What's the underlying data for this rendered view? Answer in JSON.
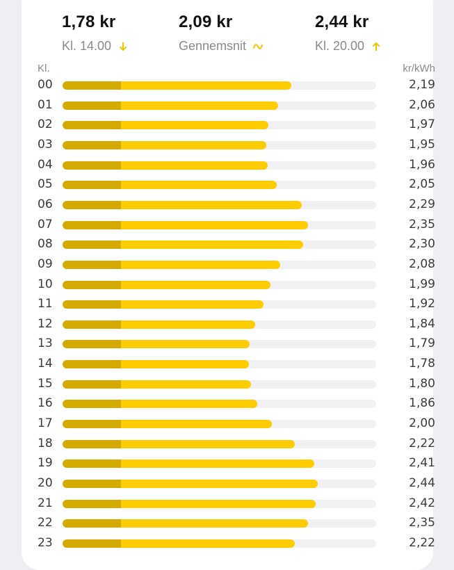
{
  "summary": {
    "min": {
      "value": "1,78 kr",
      "label": "Kl. 14.00",
      "icon": "arrow-down-icon"
    },
    "avg": {
      "value": "2,09 kr",
      "label": "Gennemsnit",
      "icon": "tilde-trend-icon"
    },
    "max": {
      "value": "2,44 kr",
      "label": "Kl. 20.00",
      "icon": "arrow-up-icon"
    }
  },
  "colors": {
    "bar_fill": "#ffcc00",
    "bar_base": "#d4aa00",
    "track": "#f1f1f3",
    "icon": "#f5c400"
  },
  "chart_data": {
    "type": "bar",
    "orientation": "horizontal",
    "xlabel": "Kl.",
    "ylabel": "kr/kWh",
    "categories": [
      "00",
      "01",
      "02",
      "03",
      "04",
      "05",
      "06",
      "07",
      "08",
      "09",
      "10",
      "11",
      "12",
      "13",
      "14",
      "15",
      "16",
      "17",
      "18",
      "19",
      "20",
      "21",
      "22",
      "23"
    ],
    "values": [
      2.19,
      2.06,
      1.97,
      1.95,
      1.96,
      2.05,
      2.29,
      2.35,
      2.3,
      2.08,
      1.99,
      1.92,
      1.84,
      1.79,
      1.78,
      1.8,
      1.86,
      2.0,
      2.22,
      2.41,
      2.44,
      2.42,
      2.35,
      2.22
    ],
    "value_labels": [
      "2,19",
      "2,06",
      "1,97",
      "1,95",
      "1,96",
      "2,05",
      "2,29",
      "2,35",
      "2,30",
      "2,08",
      "1,99",
      "1,92",
      "1,84",
      "1,79",
      "1,78",
      "1,80",
      "1,86",
      "2,00",
      "2,22",
      "2,41",
      "2,44",
      "2,42",
      "2,35",
      "2,22"
    ],
    "base_value": 0.56,
    "xlim": [
      0,
      3.0
    ],
    "grid": false,
    "legend": false
  }
}
